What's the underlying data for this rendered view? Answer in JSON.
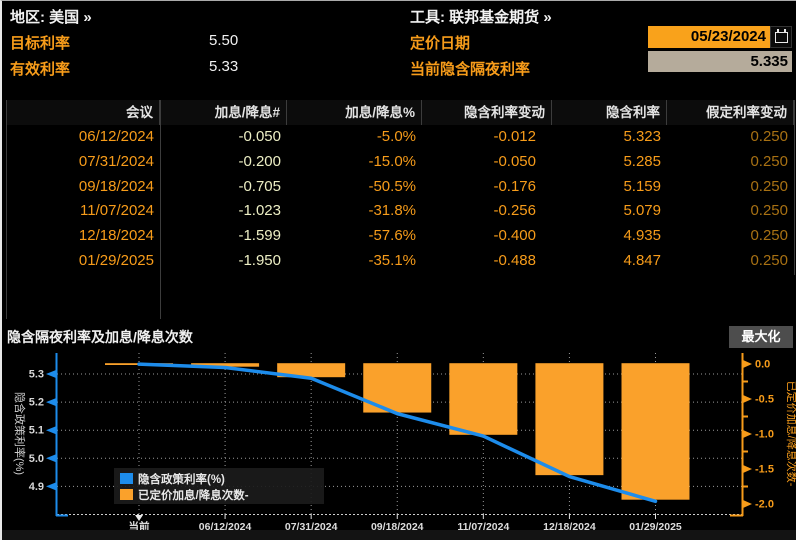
{
  "header": {
    "region_label": "地区: 美国 »",
    "tool_label": "工具: 联邦基金期货 »",
    "target_rate_label": "目标利率",
    "target_rate_value": "5.50",
    "effective_rate_label": "有效利率",
    "effective_rate_value": "5.33",
    "pricing_date_label": "定价日期",
    "pricing_date_value": "05/23/2024",
    "implied_overnight_label": "当前隐含隔夜利率",
    "implied_overnight_value": "5.335",
    "calendar_icon": "calendar-icon"
  },
  "table": {
    "columns": [
      "会议",
      "加息/降息#",
      "加息/降息%",
      "隐含利率变动",
      "隐含利率",
      "假定利率变动"
    ],
    "rows": [
      [
        "06/12/2024",
        "-0.050",
        "-5.0%",
        "-0.012",
        "5.323",
        "0.250"
      ],
      [
        "07/31/2024",
        "-0.200",
        "-15.0%",
        "-0.050",
        "5.285",
        "0.250"
      ],
      [
        "09/18/2024",
        "-0.705",
        "-50.5%",
        "-0.176",
        "5.159",
        "0.250"
      ],
      [
        "11/07/2024",
        "-1.023",
        "-31.8%",
        "-0.256",
        "5.079",
        "0.250"
      ],
      [
        "12/18/2024",
        "-1.599",
        "-57.6%",
        "-0.400",
        "4.935",
        "0.250"
      ],
      [
        "01/29/2025",
        "-1.950",
        "-35.1%",
        "-0.488",
        "4.847",
        "0.250"
      ]
    ]
  },
  "chart_section": {
    "title": "隐含隔夜利率及加息/降息次数",
    "maximize_label": "最大化"
  },
  "chart_data": {
    "type": "combo",
    "categories": [
      "当前",
      "06/12/2024",
      "07/31/2024",
      "09/18/2024",
      "11/07/2024",
      "12/18/2024",
      "01/29/2025"
    ],
    "series": [
      {
        "name": "隐含政策利率(%)",
        "type": "line",
        "axis": "left",
        "color": "#1d8ceb",
        "values": [
          5.335,
          5.323,
          5.285,
          5.159,
          5.079,
          4.935,
          4.847
        ]
      },
      {
        "name": "已定价加息/降息次数-",
        "type": "bar",
        "axis": "right",
        "color": "#faa12b",
        "values": [
          0.0,
          -0.05,
          -0.2,
          -0.705,
          -1.023,
          -1.599,
          -1.95
        ]
      }
    ],
    "left_axis": {
      "label": "隐含政策利率(%)",
      "ticks": [
        5.3,
        5.2,
        5.1,
        5.0,
        4.9
      ],
      "range": [
        4.8,
        5.375
      ],
      "color": "#1d8ceb"
    },
    "right_axis": {
      "label": "已定价加息/降息次数-",
      "ticks": [
        0.0,
        -0.5,
        -1.0,
        -1.5,
        -2.0
      ],
      "range": [
        -2.15,
        0.07
      ],
      "color": "#f79c1a"
    },
    "grid": true,
    "legend_position": "inside-bottom-left"
  },
  "colors": {
    "accent_orange": "#f79c1a",
    "bar_orange": "#faa12b",
    "line_blue": "#1d8ceb",
    "pale_yellow": "#edefc5",
    "dim_orange": "#a87113",
    "field_orange_bg": "#f9a21b",
    "field_tan_bg": "#b5ab9b",
    "button_gray": "#4d4d4d"
  }
}
